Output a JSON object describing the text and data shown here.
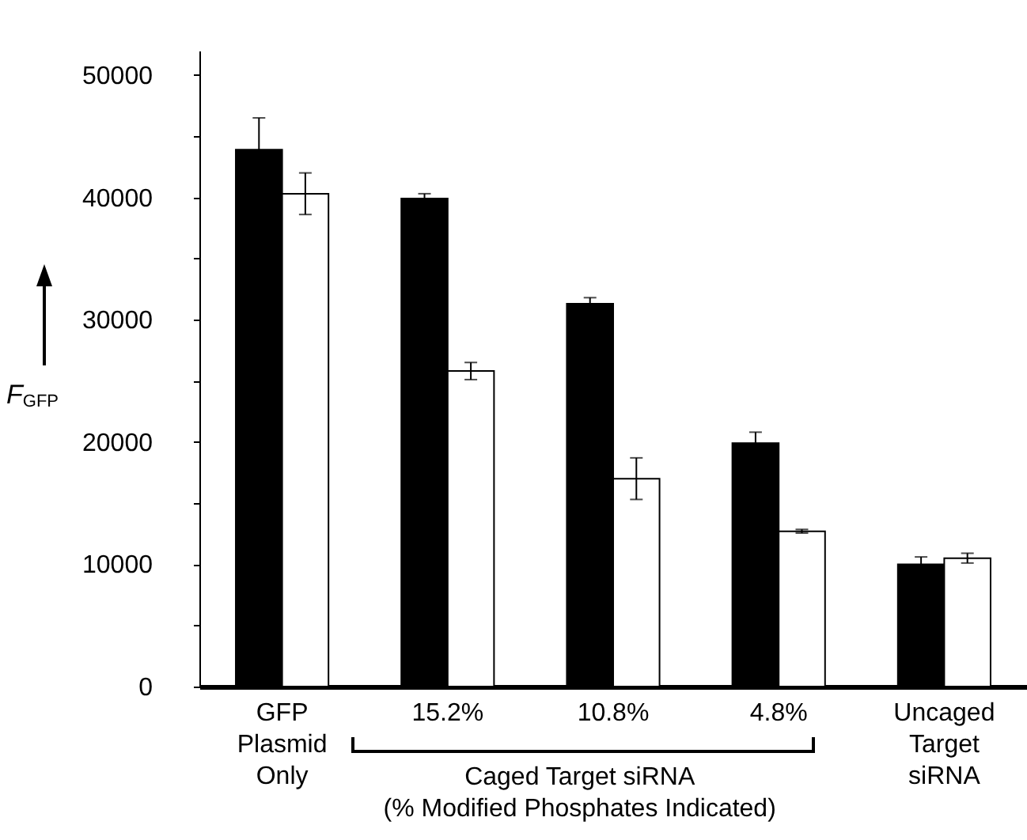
{
  "chart_data": {
    "type": "bar",
    "ylabel": "F$_{GFP}$",
    "categories": [
      "GFP Plasmid Only",
      "15.2%",
      "10.8%",
      "4.8%",
      "Uncaged Target siRNA"
    ],
    "series": [
      {
        "color": "#000000",
        "values": [
          43900,
          39900,
          31300,
          19900,
          10000
        ],
        "errors": [
          2600,
          400,
          500,
          900,
          600
        ]
      },
      {
        "color": "#ffffff",
        "values": [
          40300,
          25800,
          17000,
          12700,
          10500
        ],
        "errors": [
          1700,
          700,
          1700,
          150,
          400
        ]
      }
    ],
    "ylim": [
      0,
      52000
    ],
    "yticks": [
      0,
      {
        "value": 5000,
        "label": null
      },
      10000,
      {
        "value": 15000,
        "label": null
      },
      20000,
      {
        "value": 25000,
        "label": null
      },
      30000,
      {
        "value": 35000,
        "label": null
      },
      40000,
      {
        "value": 45000,
        "label": null
      },
      50000
    ],
    "grid": false,
    "annotations": [
      "Caged Target siRNA",
      "(% Modified Phosphates Indicated)"
    ]
  }
}
